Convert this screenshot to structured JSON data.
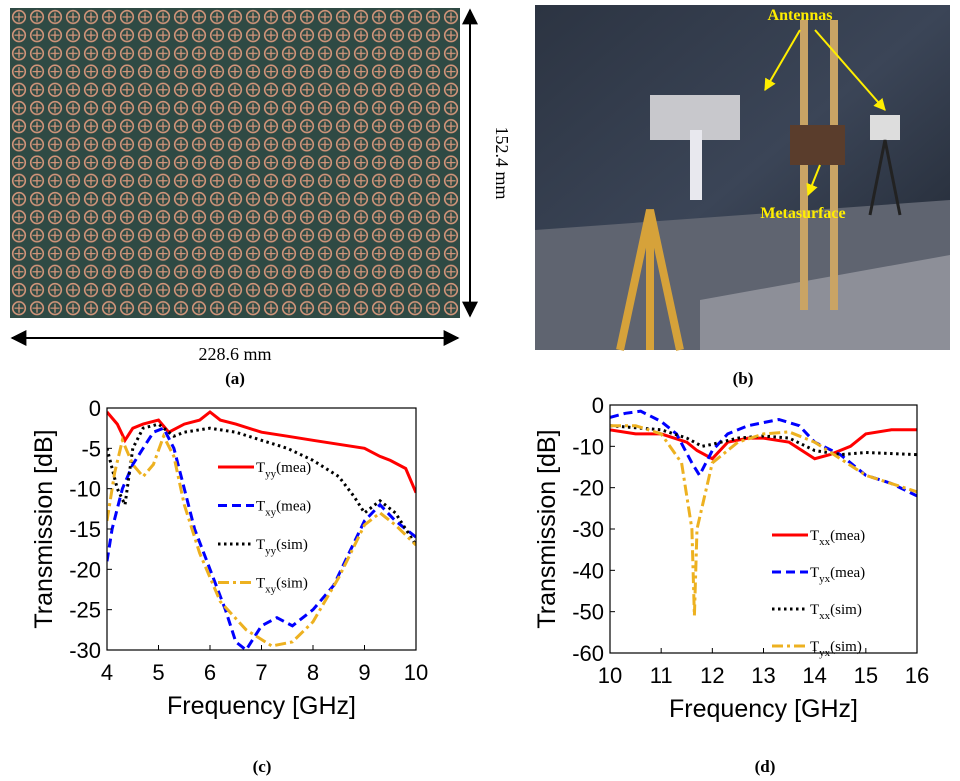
{
  "panel_a": {
    "width_label": "228.6 mm",
    "height_label": "152.4 mm",
    "caption": "(a)"
  },
  "panel_b": {
    "label_antennas": "Antennas",
    "label_metasurface": "Metasurface",
    "caption": "(b)"
  },
  "chart_data": [
    {
      "type": "line",
      "caption": "(c)",
      "x_label": "Frequency [GHz]",
      "y_label": "Transmission [dB]",
      "xlim": [
        4,
        10
      ],
      "ylim": [
        -30,
        0
      ],
      "xticks": [
        4,
        5,
        6,
        7,
        8,
        9,
        10
      ],
      "yticks": [
        0,
        -5,
        -10,
        -15,
        -20,
        -25,
        -30
      ],
      "series": [
        {
          "name": "Tyy(mea)",
          "color": "#ff0000",
          "style": "solid",
          "x": [
            4,
            4.2,
            4.35,
            4.5,
            4.7,
            5,
            5.2,
            5.5,
            5.8,
            6,
            6.2,
            6.5,
            7,
            7.5,
            8,
            8.5,
            9,
            9.3,
            9.5,
            9.8,
            10
          ],
          "values": [
            -0.5,
            -2,
            -4,
            -2.5,
            -2,
            -1.5,
            -3,
            -2,
            -1.5,
            -0.5,
            -1.5,
            -2,
            -3,
            -3.5,
            -4,
            -4.5,
            -5,
            -6,
            -6.5,
            -7.5,
            -10.5
          ]
        },
        {
          "name": "Txy(mea)",
          "color": "#0000ff",
          "style": "dashed",
          "x": [
            4,
            4.1,
            4.3,
            4.5,
            4.7,
            4.9,
            5.1,
            5.3,
            5.5,
            5.7,
            6,
            6.3,
            6.5,
            6.7,
            7,
            7.3,
            7.6,
            8,
            8.4,
            8.7,
            9,
            9.3,
            9.6,
            10
          ],
          "values": [
            -19,
            -15,
            -10,
            -7,
            -5,
            -3,
            -2.5,
            -5,
            -10,
            -15,
            -20,
            -25,
            -29,
            -30,
            -27,
            -26,
            -27,
            -25,
            -22,
            -18,
            -14,
            -12,
            -14,
            -16
          ]
        },
        {
          "name": "Tyy(sim)",
          "color": "#000000",
          "style": "dotted",
          "x": [
            4,
            4.2,
            4.35,
            4.5,
            4.7,
            5,
            5.3,
            5.5,
            6,
            6.5,
            7,
            7.5,
            8,
            8.5,
            8.8,
            9,
            9.3,
            9.6,
            10
          ],
          "values": [
            -5,
            -10,
            -12,
            -5,
            -2.5,
            -2,
            -3.5,
            -3,
            -2.5,
            -3,
            -4,
            -5,
            -6.5,
            -8.5,
            -11,
            -13,
            -11.5,
            -13,
            -17
          ]
        },
        {
          "name": "Txy(sim)",
          "color": "#edb120",
          "style": "dashdot",
          "x": [
            4,
            4.15,
            4.3,
            4.5,
            4.7,
            4.9,
            5.1,
            5.3,
            5.5,
            5.8,
            6.2,
            6.7,
            7.2,
            7.6,
            8,
            8.5,
            9,
            9.3,
            9.6,
            10
          ],
          "values": [
            -14,
            -8,
            -4,
            -7,
            -8.5,
            -7,
            -3.5,
            -6,
            -12,
            -18,
            -24,
            -27.5,
            -29.5,
            -29,
            -26.5,
            -21,
            -14.5,
            -13,
            -14.5,
            -17
          ]
        }
      ]
    },
    {
      "type": "line",
      "caption": "(d)",
      "x_label": "Frequency [GHz]",
      "y_label": "Transmission [dB]",
      "xlim": [
        10,
        16
      ],
      "ylim": [
        -60,
        0
      ],
      "xticks": [
        10,
        11,
        12,
        13,
        14,
        15,
        16
      ],
      "yticks": [
        0,
        -10,
        -20,
        -30,
        -40,
        -50,
        -60
      ],
      "series": [
        {
          "name": "Txx(mea)",
          "color": "#ff0000",
          "style": "solid",
          "x": [
            10,
            10.5,
            11,
            11.5,
            11.7,
            12,
            12.3,
            12.7,
            13,
            13.5,
            14,
            14.3,
            14.7,
            15,
            15.5,
            16
          ],
          "values": [
            -6,
            -7,
            -7,
            -9,
            -11,
            -13,
            -9,
            -8,
            -8,
            -9,
            -13,
            -12,
            -10,
            -7,
            -6,
            -6
          ]
        },
        {
          "name": "Tyx(mea)",
          "color": "#0000ff",
          "style": "dashed",
          "x": [
            10,
            10.3,
            10.6,
            11,
            11.3,
            11.6,
            11.75,
            12,
            12.3,
            12.7,
            13.3,
            13.7,
            14,
            14.5,
            15,
            15.5,
            16
          ],
          "values": [
            -3,
            -2,
            -1.5,
            -4,
            -7,
            -14,
            -17,
            -11,
            -7,
            -5,
            -3.5,
            -5,
            -9,
            -12,
            -17,
            -19,
            -22
          ]
        },
        {
          "name": "Txx(sim)",
          "color": "#000000",
          "style": "dotted",
          "x": [
            10,
            11,
            11.5,
            11.8,
            12,
            12.5,
            13,
            13.5,
            14,
            14.5,
            15,
            16
          ],
          "values": [
            -5,
            -6,
            -8,
            -10,
            -9.5,
            -8,
            -7.5,
            -8,
            -11,
            -12,
            -11.5,
            -12
          ]
        },
        {
          "name": "Tyx(sim)",
          "color": "#edb120",
          "style": "dashdot",
          "x": [
            10,
            10.5,
            11,
            11.4,
            11.6,
            11.65,
            11.7,
            12,
            12.5,
            13,
            13.5,
            14,
            14.5,
            15,
            16
          ],
          "values": [
            -5,
            -5,
            -7,
            -14,
            -30,
            -51,
            -30,
            -14,
            -9,
            -7,
            -6.5,
            -9,
            -13,
            -17,
            -21
          ]
        }
      ]
    }
  ]
}
